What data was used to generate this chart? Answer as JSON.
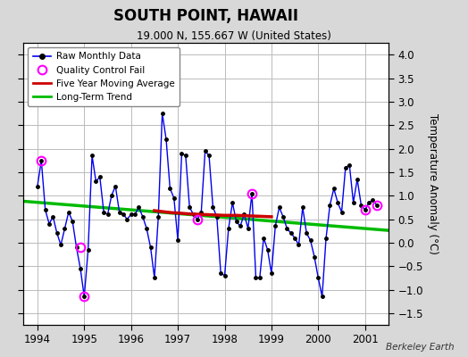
{
  "title": "SOUTH POINT, HAWAII",
  "subtitle": "19.000 N, 155.667 W (United States)",
  "ylabel": "Temperature Anomaly (°C)",
  "credit": "Berkeley Earth",
  "ylim": [
    -1.75,
    4.25
  ],
  "xlim": [
    1993.7,
    2001.5
  ],
  "xticks": [
    1994,
    1995,
    1996,
    1997,
    1998,
    1999,
    2000,
    2001
  ],
  "yticks": [
    -1.5,
    -1.0,
    -0.5,
    0.0,
    0.5,
    1.0,
    1.5,
    2.0,
    2.5,
    3.0,
    3.5,
    4.0
  ],
  "raw_x": [
    1994.0,
    1994.083,
    1994.167,
    1994.25,
    1994.333,
    1994.417,
    1994.5,
    1994.583,
    1994.667,
    1994.75,
    1994.833,
    1994.917,
    1995.0,
    1995.083,
    1995.167,
    1995.25,
    1995.333,
    1995.417,
    1995.5,
    1995.583,
    1995.667,
    1995.75,
    1995.833,
    1995.917,
    1996.0,
    1996.083,
    1996.167,
    1996.25,
    1996.333,
    1996.417,
    1996.5,
    1996.583,
    1996.667,
    1996.75,
    1996.833,
    1996.917,
    1997.0,
    1997.083,
    1997.167,
    1997.25,
    1997.333,
    1997.417,
    1997.5,
    1997.583,
    1997.667,
    1997.75,
    1997.833,
    1997.917,
    1998.0,
    1998.083,
    1998.167,
    1998.25,
    1998.333,
    1998.417,
    1998.5,
    1998.583,
    1998.667,
    1998.75,
    1998.833,
    1998.917,
    1999.0,
    1999.083,
    1999.167,
    1999.25,
    1999.333,
    1999.417,
    1999.5,
    1999.583,
    1999.667,
    1999.75,
    1999.833,
    1999.917,
    2000.0,
    2000.083,
    2000.167,
    2000.25,
    2000.333,
    2000.417,
    2000.5,
    2000.583,
    2000.667,
    2000.75,
    2000.833,
    2000.917,
    2001.0,
    2001.083,
    2001.167,
    2001.25
  ],
  "raw_y": [
    1.2,
    1.75,
    0.7,
    0.4,
    0.55,
    0.2,
    -0.05,
    0.3,
    0.65,
    0.45,
    -0.1,
    -0.55,
    -1.15,
    -0.15,
    1.85,
    1.3,
    1.4,
    0.65,
    0.6,
    1.0,
    1.2,
    0.65,
    0.6,
    0.5,
    0.6,
    0.6,
    0.75,
    0.55,
    0.3,
    -0.1,
    -0.75,
    0.55,
    2.75,
    2.2,
    1.15,
    0.95,
    0.05,
    1.9,
    1.85,
    0.75,
    0.6,
    0.5,
    0.65,
    1.95,
    1.85,
    0.75,
    0.55,
    -0.65,
    -0.7,
    0.3,
    0.85,
    0.45,
    0.35,
    0.6,
    0.3,
    1.05,
    -0.75,
    -0.75,
    0.1,
    -0.15,
    -0.65,
    0.35,
    0.75,
    0.55,
    0.3,
    0.2,
    0.1,
    -0.05,
    0.75,
    0.2,
    0.05,
    -0.3,
    -0.75,
    -1.15,
    0.1,
    0.8,
    1.15,
    0.85,
    0.65,
    1.6,
    1.65,
    0.85,
    1.35,
    0.8,
    0.7,
    0.85,
    0.9,
    0.8
  ],
  "qc_fail_x": [
    1994.083,
    1994.917,
    1995.0,
    1997.417,
    1998.583,
    2001.0,
    2001.25
  ],
  "qc_fail_y": [
    1.75,
    -0.1,
    -1.15,
    0.5,
    1.05,
    0.7,
    0.8
  ],
  "moving_avg_x": [
    1996.5,
    1996.667,
    1996.833,
    1997.0,
    1997.25,
    1997.5,
    1997.75,
    1998.0,
    1998.25,
    1998.5,
    1998.75,
    1999.0
  ],
  "moving_avg_y": [
    0.68,
    0.66,
    0.64,
    0.63,
    0.61,
    0.6,
    0.59,
    0.58,
    0.58,
    0.57,
    0.56,
    0.55
  ],
  "trend_x": [
    1993.7,
    2001.5
  ],
  "trend_y": [
    0.88,
    0.26
  ],
  "raw_color": "#0000ee",
  "raw_marker_color": "#000000",
  "qc_color": "#ff00ff",
  "moving_avg_color": "#cc0000",
  "trend_color": "#00bb00",
  "bg_color": "#d8d8d8",
  "plot_bg_color": "#ffffff",
  "grid_color": "#bbbbbb"
}
